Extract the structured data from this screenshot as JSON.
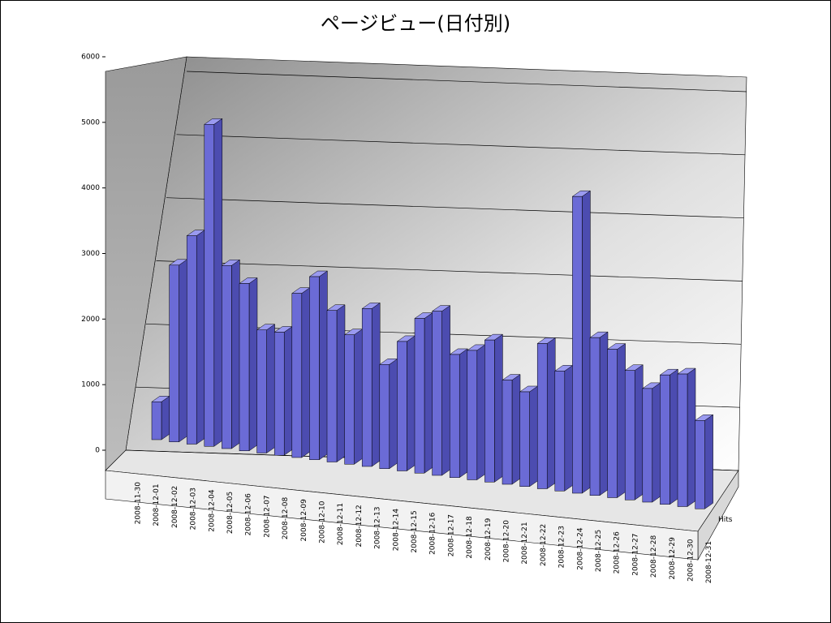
{
  "chart_data": {
    "type": "bar3d",
    "title": "ページビュー(日付別)",
    "categories": [
      "2008-11-30",
      "2008-12-01",
      "2008-12-02",
      "2008-12-03",
      "2008-12-04",
      "2008-12-05",
      "2008-12-06",
      "2008-12-07",
      "2008-12-08",
      "2008-12-09",
      "2008-12-10",
      "2008-12-11",
      "2008-12-12",
      "2008-12-13",
      "2008-12-14",
      "2008-12-15",
      "2008-12-16",
      "2008-12-17",
      "2008-12-18",
      "2008-12-19",
      "2008-12-20",
      "2008-12-21",
      "2008-12-22",
      "2008-12-23",
      "2008-12-24",
      "2008-12-25",
      "2008-12-26",
      "2008-12-27",
      "2008-12-28",
      "2008-12-29",
      "2008-12-30",
      "2008-12-31"
    ],
    "series": [
      {
        "name": "Hits",
        "color": "#6b6bd6",
        "values": [
          600,
          2800,
          3300,
          5100,
          2900,
          2650,
          1950,
          1950,
          2600,
          2900,
          2400,
          2050,
          2500,
          1650,
          2050,
          2450,
          2600,
          1950,
          2050,
          2250,
          1650,
          1500,
          2300,
          1900,
          4700,
          2500,
          2350,
          2050,
          1800,
          2050,
          2100,
          1400
        ]
      }
    ],
    "ylim": [
      0,
      6000
    ],
    "yticks": [
      0,
      1000,
      2000,
      3000,
      4000,
      5000,
      6000
    ],
    "grid": true
  }
}
